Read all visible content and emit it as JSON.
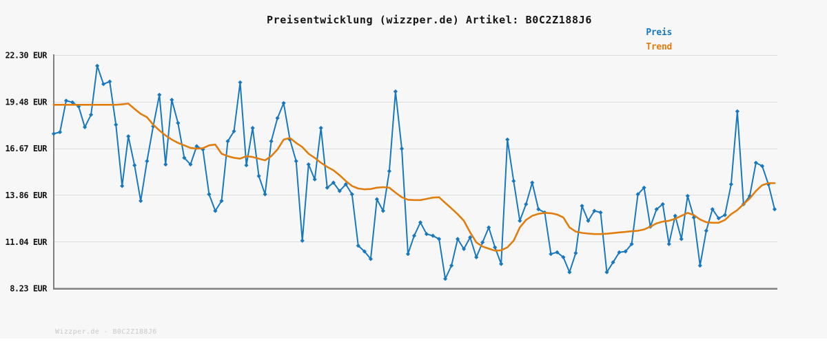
{
  "title": "Preisentwicklung (wizzper.de) Artikel: B0C2Z188J6",
  "footer": "Wizzper.de - B0C2Z188J6",
  "legend": [
    {
      "label": "Preis",
      "color": "#1878be"
    },
    {
      "label": "Trend",
      "color": "#e07d0c"
    }
  ],
  "colors": {
    "background": "#f7f7f7",
    "grid": "#dcdcdc",
    "axis": "#808080",
    "title_text": "#141414",
    "tick_text": "#141414",
    "footer_text": "#c9c9c9",
    "price": "#1878be",
    "trend": "#e07d0c"
  },
  "chart_data": {
    "type": "line",
    "title": "Preisentwicklung (wizzper.de) Artikel: B0C2Z188J6",
    "xlabel": "",
    "ylabel": "EUR",
    "ylim": [
      8.23,
      22.3
    ],
    "grid": "horizontal",
    "legend_position": "top-right",
    "yticks": [
      {
        "value": 22.3,
        "label": "22.30 EUR"
      },
      {
        "value": 19.48,
        "label": "19.48 EUR"
      },
      {
        "value": 16.67,
        "label": "16.67 EUR"
      },
      {
        "value": 13.86,
        "label": "13.86 EUR"
      },
      {
        "value": 11.04,
        "label": "11.04 EUR"
      },
      {
        "value": 8.23,
        "label": "8.23 EUR"
      }
    ],
    "series": [
      {
        "name": "Preis",
        "color": "#1878be",
        "marker": "diamond",
        "values": [
          17.55,
          17.65,
          19.55,
          19.45,
          19.2,
          17.95,
          18.7,
          21.65,
          20.55,
          20.7,
          18.1,
          14.4,
          17.4,
          15.65,
          13.5,
          15.9,
          18.0,
          19.9,
          15.7,
          19.6,
          18.2,
          16.1,
          15.7,
          16.8,
          16.6,
          13.9,
          12.9,
          13.5,
          17.1,
          17.7,
          20.65,
          15.65,
          17.9,
          15.0,
          13.9,
          17.1,
          18.5,
          19.4,
          17.2,
          15.9,
          11.1,
          15.7,
          14.8,
          17.9,
          14.3,
          14.6,
          14.1,
          14.5,
          13.9,
          10.8,
          10.45,
          10.0,
          13.6,
          12.9,
          15.3,
          20.1,
          16.65,
          10.3,
          11.4,
          12.2,
          11.5,
          11.4,
          11.2,
          8.8,
          9.6,
          11.2,
          10.6,
          11.3,
          10.1,
          11.0,
          11.9,
          10.7,
          9.7,
          17.2,
          14.7,
          12.3,
          13.3,
          14.6,
          13.0,
          12.8,
          10.3,
          10.4,
          10.1,
          9.2,
          10.35,
          13.2,
          12.3,
          12.9,
          12.8,
          9.2,
          9.8,
          10.4,
          10.45,
          10.9,
          13.9,
          14.3,
          11.95,
          13.0,
          13.3,
          10.9,
          12.6,
          11.2,
          13.8,
          12.5,
          9.6,
          11.7,
          13.0,
          12.45,
          12.65,
          14.5,
          18.9,
          13.3,
          13.8,
          15.8,
          15.6,
          14.5,
          13.0
        ]
      },
      {
        "name": "Trend",
        "color": "#e07d0c",
        "marker": "none",
        "values": [
          19.3,
          19.3,
          19.3,
          19.3,
          19.3,
          19.3,
          19.3,
          19.3,
          19.3,
          19.3,
          19.3,
          19.33,
          19.37,
          19.05,
          18.75,
          18.55,
          18.1,
          17.75,
          17.45,
          17.2,
          17.0,
          16.85,
          16.7,
          16.65,
          16.68,
          16.85,
          16.9,
          16.35,
          16.2,
          16.1,
          16.05,
          16.2,
          16.15,
          16.05,
          15.95,
          16.2,
          16.6,
          17.2,
          17.3,
          17.0,
          16.75,
          16.35,
          16.1,
          15.8,
          15.55,
          15.35,
          15.05,
          14.7,
          14.4,
          14.25,
          14.2,
          14.22,
          14.3,
          14.33,
          14.3,
          14.0,
          13.72,
          13.57,
          13.55,
          13.55,
          13.62,
          13.7,
          13.72,
          13.38,
          13.05,
          12.7,
          12.3,
          11.6,
          11.0,
          10.75,
          10.62,
          10.5,
          10.52,
          10.7,
          11.1,
          11.9,
          12.35,
          12.6,
          12.72,
          12.78,
          12.76,
          12.68,
          12.5,
          11.9,
          11.65,
          11.57,
          11.53,
          11.5,
          11.5,
          11.52,
          11.56,
          11.6,
          11.63,
          11.67,
          11.7,
          11.78,
          11.95,
          12.15,
          12.25,
          12.3,
          12.42,
          12.6,
          12.78,
          12.65,
          12.38,
          12.22,
          12.18,
          12.18,
          12.35,
          12.7,
          12.95,
          13.3,
          13.65,
          14.1,
          14.45,
          14.57,
          14.57
        ]
      }
    ]
  }
}
